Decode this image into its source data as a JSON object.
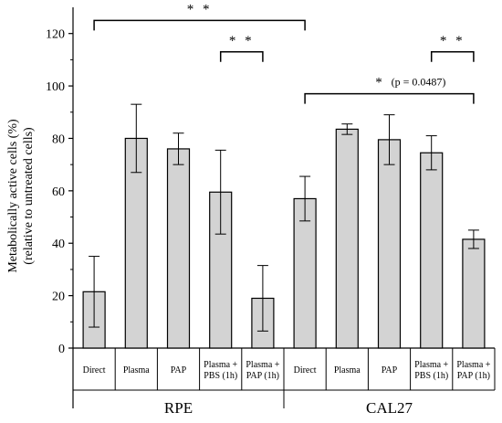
{
  "chart_data": {
    "type": "bar",
    "ylabel": "Metabolically active cells (%)",
    "ylabel2": "(relative to untreated cells)",
    "ylim": [
      0,
      130
    ],
    "yticks": [
      0,
      20,
      40,
      60,
      80,
      100,
      120
    ],
    "groups": [
      {
        "name": "RPE",
        "start": 0,
        "count": 5
      },
      {
        "name": "CAL27",
        "start": 5,
        "count": 5
      }
    ],
    "categories": [
      [
        "Direct"
      ],
      [
        "Plasma"
      ],
      [
        "PAP"
      ],
      [
        "Plasma +",
        "PBS (1h)"
      ],
      [
        "Plasma +",
        "PAP (1h)"
      ],
      [
        "Direct"
      ],
      [
        "Plasma"
      ],
      [
        "PAP"
      ],
      [
        "Plasma +",
        "PBS (1h)"
      ],
      [
        "Plasma +",
        "PAP (1h)"
      ]
    ],
    "values": [
      21.5,
      80,
      76,
      59.5,
      19,
      57,
      83.5,
      79.5,
      74.5,
      41.5
    ],
    "errors": [
      13.5,
      13,
      6,
      16,
      12.5,
      8.5,
      2,
      9.5,
      6.5,
      3.5
    ],
    "bar_color": "#d3d3d3",
    "significance": [
      {
        "from": 0,
        "to": 5,
        "y": 125,
        "label": "* *"
      },
      {
        "from": 3,
        "to": 4,
        "y": 113,
        "label": "* *"
      },
      {
        "from": 5,
        "to": 9,
        "y": 97,
        "label": "*",
        "note": "(p = 0.0487)"
      },
      {
        "from": 8,
        "to": 9,
        "y": 113,
        "label": "* *"
      }
    ]
  }
}
